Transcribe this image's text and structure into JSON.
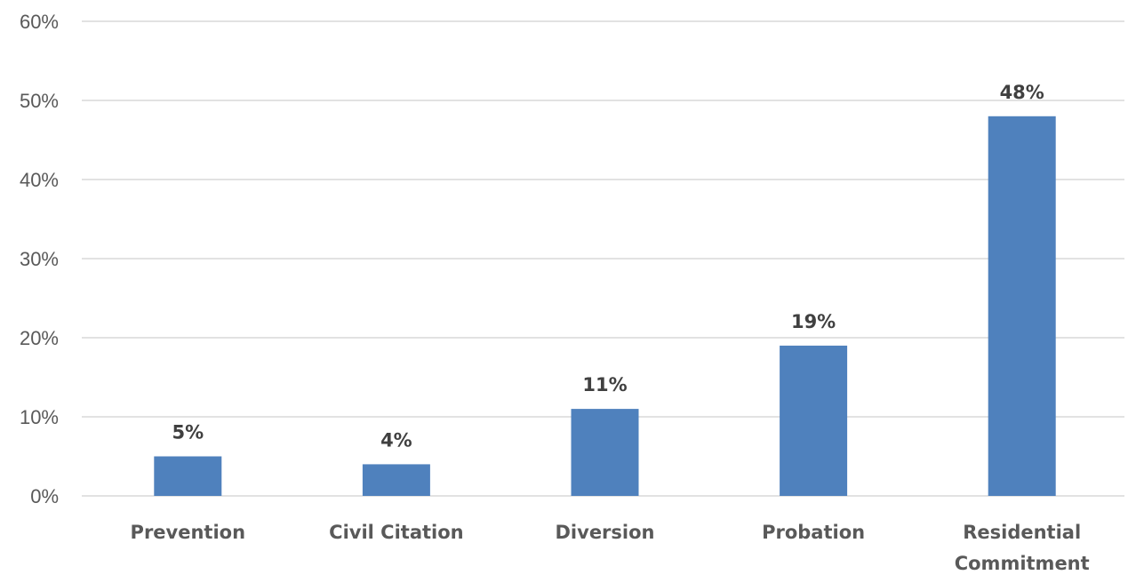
{
  "chart_data": {
    "type": "bar",
    "categories": [
      "Prevention",
      "Civil Citation",
      "Diversion",
      "Probation",
      "Residential Commitment"
    ],
    "category_lines": [
      [
        "Prevention"
      ],
      [
        "Civil Citation"
      ],
      [
        "Diversion"
      ],
      [
        "Probation"
      ],
      [
        "Residential",
        "Commitment"
      ]
    ],
    "values": [
      5,
      4,
      11,
      19,
      48
    ],
    "data_labels": [
      "5%",
      "4%",
      "11%",
      "19%",
      "48%"
    ],
    "y_ticks": [
      0,
      10,
      20,
      30,
      40,
      50,
      60
    ],
    "y_tick_labels": [
      "0%",
      "10%",
      "20%",
      "30%",
      "40%",
      "50%",
      "60%"
    ],
    "ylim": [
      0,
      60
    ],
    "grid": true,
    "legend": "none",
    "title": "",
    "xlabel": "",
    "ylabel": "",
    "colors": {
      "bar": "#4f81bd",
      "grid": "#d9d9d9",
      "tick_text": "#595959",
      "label_text": "#404040"
    }
  }
}
